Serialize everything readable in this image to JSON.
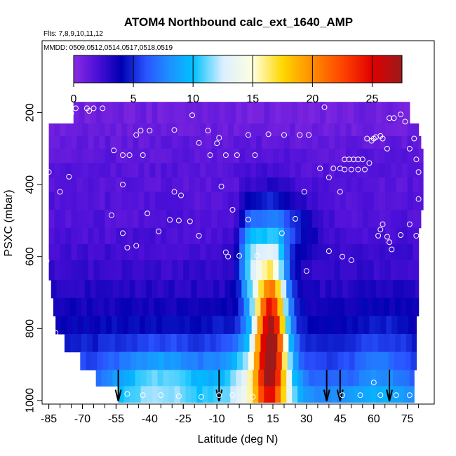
{
  "chart_data": {
    "type": "heatmap",
    "title": "ATOM4 Northbound calc_ext_1640_AMP",
    "subtitle_flights": "Flts: 7,8,9,10,11,12",
    "subtitle_dates": "MMDD: 0509,0512,0514,0517,0518,0519",
    "xlabel": "Latitude (deg N)",
    "ylabel": "PSXC (mbar)",
    "xlim": [
      -88,
      87
    ],
    "ylim": [
      1010,
      0
    ],
    "x_ticks": [
      -85,
      -70,
      -55,
      -40,
      -25,
      -10,
      5,
      15,
      30,
      45,
      60,
      75
    ],
    "x_tick_labels": [
      "-85",
      "-70",
      "-55",
      "-40",
      "-25",
      "-10",
      "5",
      "15",
      "30",
      "45",
      "60",
      "75"
    ],
    "y_ticks": [
      200,
      400,
      600,
      800,
      1000
    ],
    "y_tick_labels": [
      "200",
      "400",
      "600",
      "800",
      "1000"
    ],
    "colorbar": {
      "range": [
        0,
        27.5
      ],
      "ticks": [
        0,
        5,
        10,
        15,
        20,
        25
      ],
      "tick_labels": [
        "0",
        "5",
        "10",
        "15",
        "20",
        "25"
      ],
      "stops": [
        {
          "v": 0.0,
          "c": "#8a2be2"
        },
        {
          "v": 2.0,
          "c": "#4b0fd8"
        },
        {
          "v": 4.0,
          "c": "#0000b0"
        },
        {
          "v": 6.0,
          "c": "#2a52ff"
        },
        {
          "v": 8.0,
          "c": "#1e90ff"
        },
        {
          "v": 10.0,
          "c": "#00c0ff"
        },
        {
          "v": 12.5,
          "c": "#dbefff"
        },
        {
          "v": 15.0,
          "c": "#ffffe0"
        },
        {
          "v": 17.5,
          "c": "#ffd700"
        },
        {
          "v": 20.0,
          "c": "#ff8c00"
        },
        {
          "v": 22.5,
          "c": "#ff4500"
        },
        {
          "v": 25.0,
          "c": "#e00000"
        },
        {
          "v": 27.5,
          "c": "#9b1a1a"
        }
      ]
    },
    "pressure_bands": [
      {
        "p0": 170,
        "p1": 230,
        "lat_min": -74,
        "lat_max": 76,
        "base": 0.8
      },
      {
        "p0": 230,
        "p1": 265,
        "lat_min": -85,
        "lat_max": 80,
        "base": 1.0
      },
      {
        "p0": 265,
        "p1": 300,
        "lat_min": -85,
        "lat_max": 81,
        "base": 1.3
      },
      {
        "p0": 300,
        "p1": 340,
        "lat_min": -85,
        "lat_max": 82,
        "base": 1.5
      },
      {
        "p0": 340,
        "p1": 380,
        "lat_min": -85,
        "lat_max": 82,
        "base": 1.6
      },
      {
        "p0": 380,
        "p1": 420,
        "lat_min": -85,
        "lat_max": 82,
        "base": 1.6
      },
      {
        "p0": 420,
        "p1": 470,
        "lat_min": -85,
        "lat_max": 82,
        "base": 1.7
      },
      {
        "p0": 470,
        "p1": 520,
        "lat_min": -85,
        "lat_max": 81,
        "base": 1.8
      },
      {
        "p0": 520,
        "p1": 565,
        "lat_min": -85,
        "lat_max": 80,
        "base": 2.0
      },
      {
        "p0": 565,
        "p1": 610,
        "lat_min": -85,
        "lat_max": 80,
        "base": 2.3
      },
      {
        "p0": 610,
        "p1": 665,
        "lat_min": -85,
        "lat_max": 80,
        "base": 2.6
      },
      {
        "p0": 665,
        "p1": 715,
        "lat_min": -84,
        "lat_max": 80,
        "base": 3.0
      },
      {
        "p0": 715,
        "p1": 765,
        "lat_min": -83,
        "lat_max": 80,
        "base": 3.5
      },
      {
        "p0": 765,
        "p1": 815,
        "lat_min": -82,
        "lat_max": 79,
        "base": 4.0
      },
      {
        "p0": 815,
        "p1": 865,
        "lat_min": -78,
        "lat_max": 79,
        "base": 4.6
      },
      {
        "p0": 865,
        "p1": 915,
        "lat_min": -71,
        "lat_max": 79,
        "base": 5.3
      },
      {
        "p0": 915,
        "p1": 960,
        "lat_min": -64,
        "lat_max": 78,
        "base": 6.2
      },
      {
        "p0": 960,
        "p1": 1005,
        "lat_min": -54,
        "lat_max": 78,
        "base": 7.5
      }
    ],
    "features": [
      {
        "lat": 14,
        "p": 800,
        "dlat": 7,
        "dp": 230,
        "amp": 22
      },
      {
        "lat": 5,
        "p": 610,
        "dlat": 5,
        "dp": 140,
        "amp": 7
      },
      {
        "lat": 8,
        "p": 950,
        "dlat": 16,
        "dp": 120,
        "amp": 7
      },
      {
        "lat": -35,
        "p": 950,
        "dlat": 22,
        "dp": 90,
        "amp": 5
      },
      {
        "lat": 22,
        "p": 520,
        "dlat": 14,
        "dp": 90,
        "amp": 3
      },
      {
        "lat": 62,
        "p": 950,
        "dlat": 12,
        "dp": 160,
        "amp": 2
      }
    ],
    "markers_latitude": [
      -54,
      -9,
      39,
      45,
      67
    ],
    "scatter_points": [
      [
        -73,
        188
      ],
      [
        -68,
        188
      ],
      [
        -65,
        188
      ],
      [
        -61,
        188
      ],
      [
        -82,
        205
      ],
      [
        -77,
        205
      ],
      [
        -75,
        202
      ],
      [
        -67,
        195
      ],
      [
        -46,
        262
      ],
      [
        -44,
        250
      ],
      [
        -40,
        250
      ],
      [
        -29,
        248
      ],
      [
        -21,
        207
      ],
      [
        -14,
        250
      ],
      [
        -9,
        270
      ],
      [
        -10,
        285
      ],
      [
        4,
        262
      ],
      [
        13,
        260
      ],
      [
        20,
        262
      ],
      [
        27,
        262
      ],
      [
        31,
        262
      ],
      [
        -18,
        284
      ],
      [
        -13,
        318
      ],
      [
        -6,
        318
      ],
      [
        -1,
        318
      ],
      [
        7,
        318
      ],
      [
        38,
        185
      ],
      [
        57,
        272
      ],
      [
        60,
        272
      ],
      [
        64,
        272
      ],
      [
        67,
        215
      ],
      [
        69,
        215
      ],
      [
        72,
        205
      ],
      [
        74,
        225
      ],
      [
        78,
        272
      ],
      [
        -56,
        305
      ],
      [
        -52,
        318
      ],
      [
        -49,
        318
      ],
      [
        -76,
        378
      ],
      [
        -80,
        420
      ],
      [
        -85,
        365
      ],
      [
        -52,
        400
      ],
      [
        -43,
        318
      ],
      [
        -29,
        420
      ],
      [
        -26,
        430
      ],
      [
        -8,
        405
      ],
      [
        29,
        420
      ],
      [
        36,
        355
      ],
      [
        40,
        380
      ],
      [
        42,
        355
      ],
      [
        45,
        355
      ],
      [
        45,
        420
      ],
      [
        47,
        330
      ],
      [
        49,
        330
      ],
      [
        51,
        330
      ],
      [
        53,
        330
      ],
      [
        55,
        330
      ],
      [
        47,
        358
      ],
      [
        50,
        358
      ],
      [
        53,
        358
      ],
      [
        56,
        358
      ],
      [
        58,
        340
      ],
      [
        59,
        278
      ],
      [
        61,
        268
      ],
      [
        63,
        265
      ],
      [
        66,
        300
      ],
      [
        76,
        300
      ],
      [
        79,
        330
      ],
      [
        80,
        365
      ],
      [
        80,
        440
      ],
      [
        -57,
        485
      ],
      [
        -41,
        480
      ],
      [
        -36,
        530
      ],
      [
        -52,
        535
      ],
      [
        -50,
        575
      ],
      [
        -46,
        570
      ],
      [
        -31,
        498
      ],
      [
        -22,
        502
      ],
      [
        -27,
        500
      ],
      [
        -18,
        542
      ],
      [
        -3,
        470
      ],
      [
        4,
        497
      ],
      [
        19,
        535
      ],
      [
        25,
        495
      ],
      [
        -6,
        588
      ],
      [
        -5,
        600
      ],
      [
        0,
        598
      ],
      [
        8,
        598
      ],
      [
        30,
        640
      ],
      [
        40,
        585
      ],
      [
        46,
        600
      ],
      [
        50,
        610
      ],
      [
        62,
        542
      ],
      [
        63,
        525
      ],
      [
        64,
        510
      ],
      [
        66,
        545
      ],
      [
        67,
        560
      ],
      [
        68,
        580
      ],
      [
        72,
        540
      ],
      [
        76,
        510
      ],
      [
        79,
        542
      ],
      [
        84,
        545
      ],
      [
        -86,
        612
      ],
      [
        -82,
        812
      ],
      [
        -50,
        982
      ],
      [
        -43,
        985
      ],
      [
        -35,
        985
      ],
      [
        -27,
        988
      ],
      [
        -17,
        990
      ],
      [
        -9,
        985
      ],
      [
        -3,
        985
      ],
      [
        6,
        990
      ],
      [
        46,
        985
      ],
      [
        54,
        985
      ],
      [
        60,
        950
      ],
      [
        63,
        985
      ],
      [
        70,
        985
      ],
      [
        76,
        985
      ]
    ]
  }
}
